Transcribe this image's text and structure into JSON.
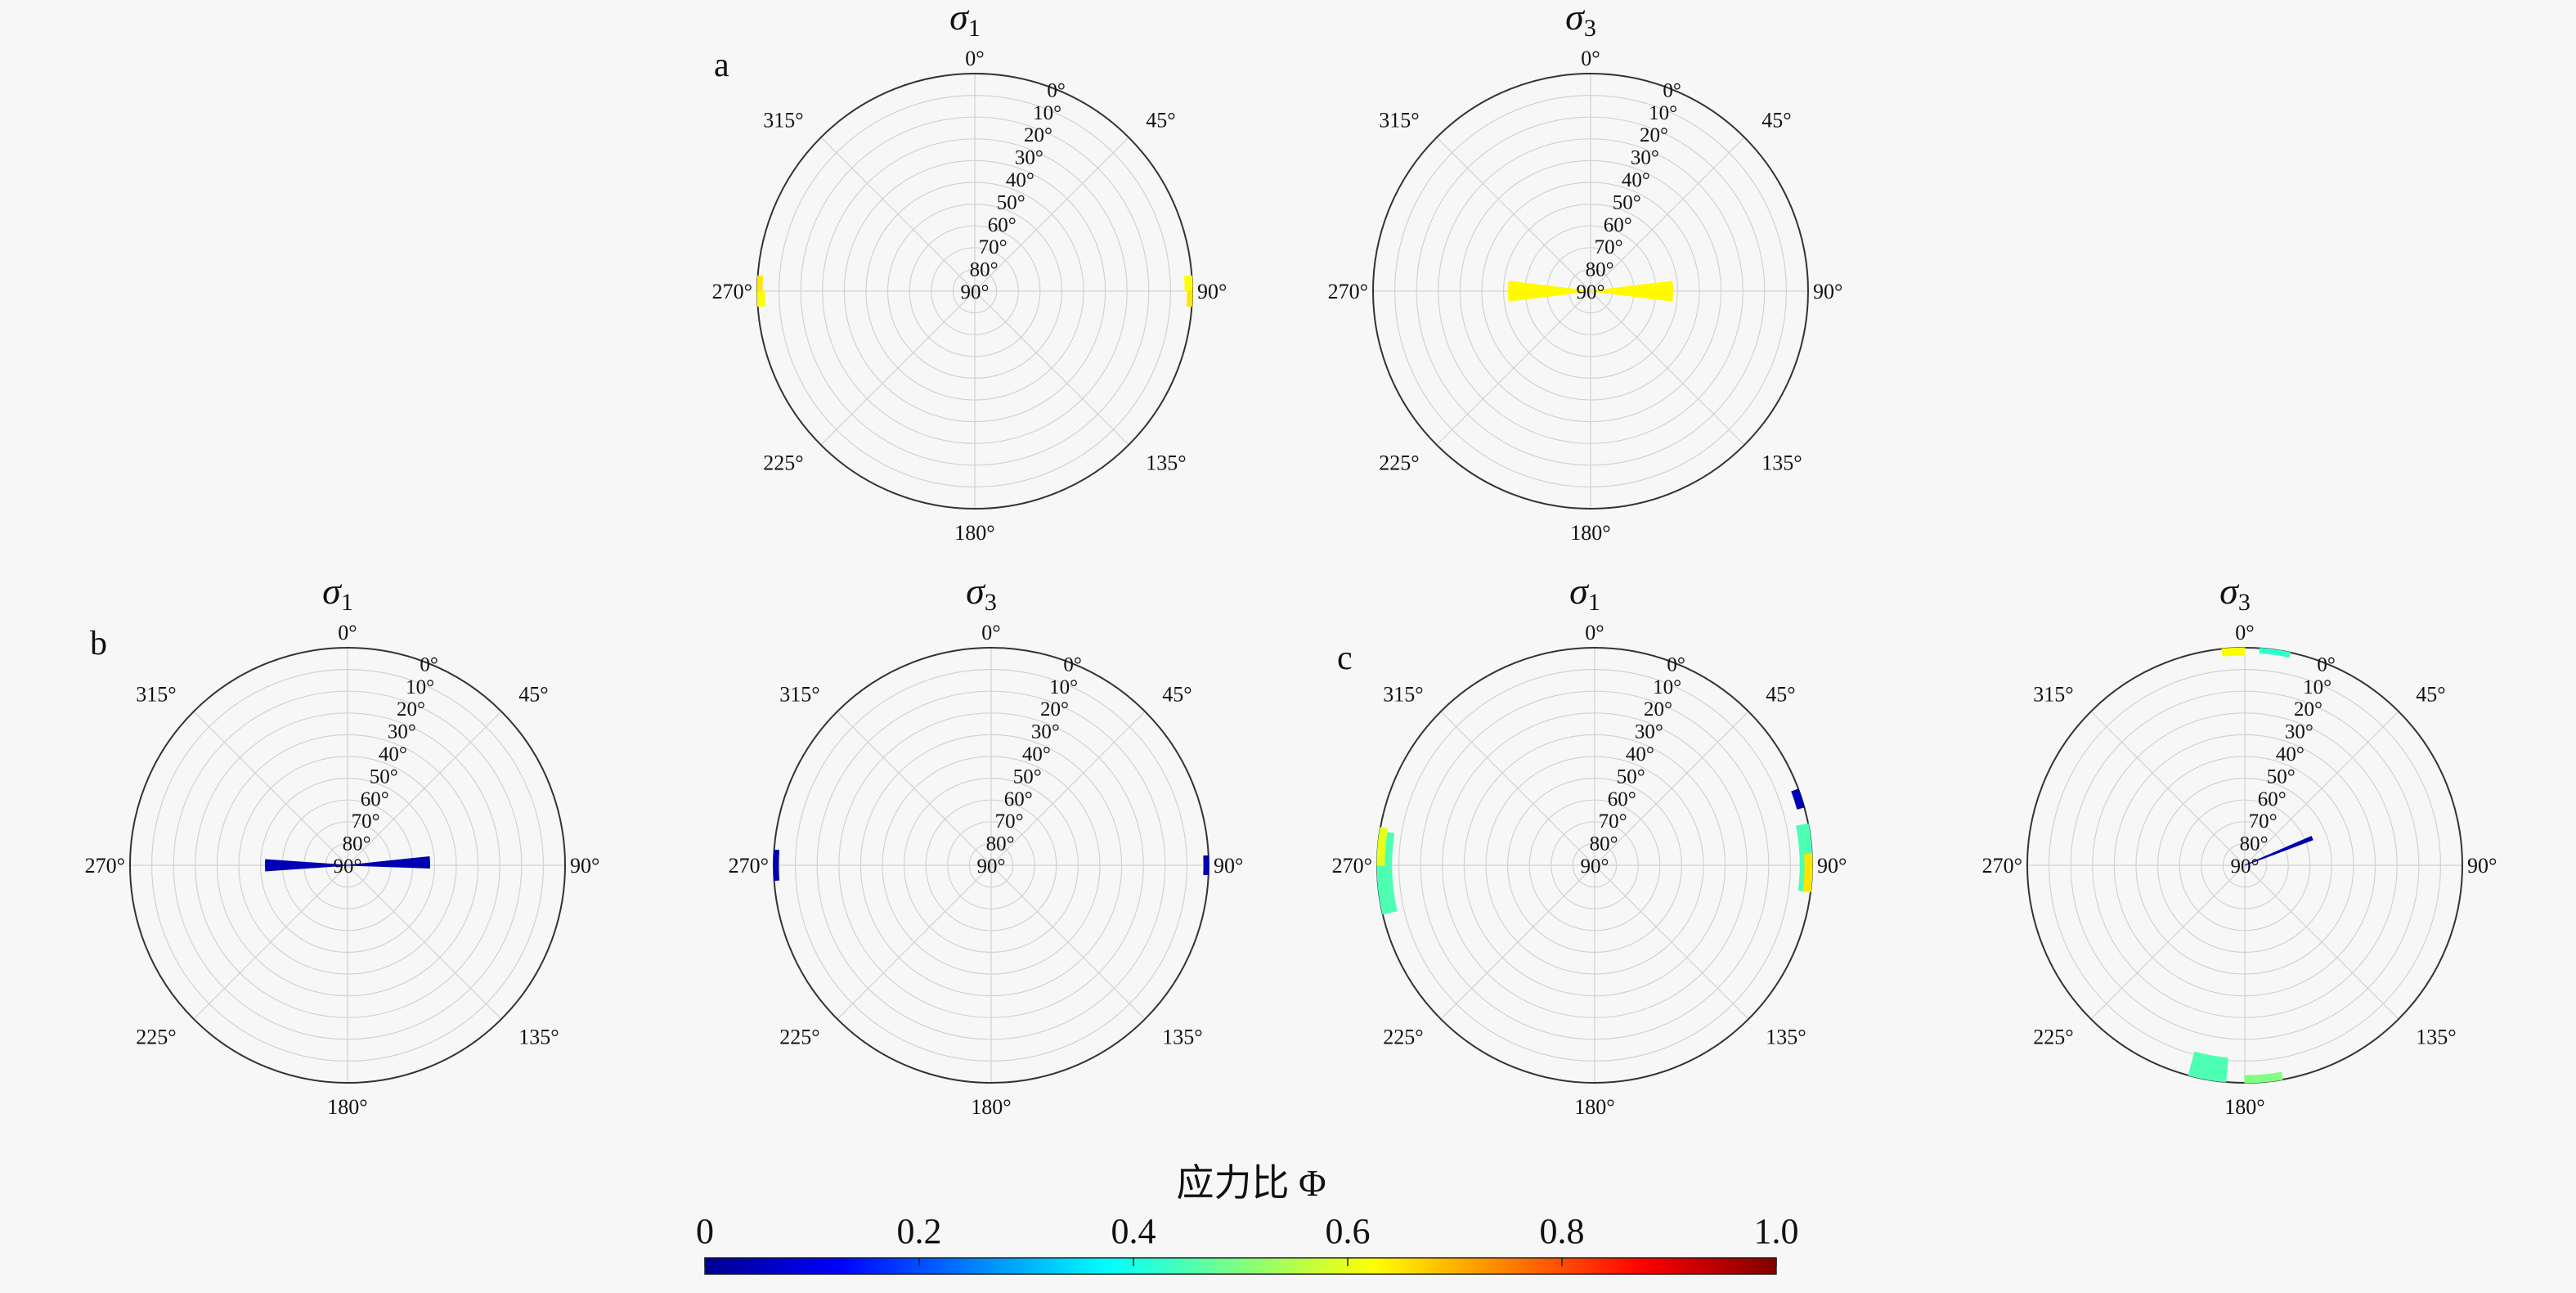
{
  "chart_data": {
    "type": "polar-rose",
    "colorbar": {
      "title": "应力比 Φ",
      "range": [
        0,
        1.0
      ],
      "ticks": [
        "0",
        "0.2",
        "0.4",
        "0.6",
        "0.8",
        "1.0"
      ],
      "colormap": "jet"
    },
    "azimuth_labels": [
      {
        "deg": 0,
        "label": "0°"
      },
      {
        "deg": 45,
        "label": "45°"
      },
      {
        "deg": 90,
        "label": "90°"
      },
      {
        "deg": 135,
        "label": "135°"
      },
      {
        "deg": 180,
        "label": "180°"
      },
      {
        "deg": 225,
        "label": "225°"
      },
      {
        "deg": 270,
        "label": "270°"
      },
      {
        "deg": 315,
        "label": "315°"
      }
    ],
    "plunge_labels": [
      "0°",
      "10°",
      "20°",
      "30°",
      "40°",
      "50°",
      "60°",
      "70°",
      "80°",
      "90°"
    ],
    "panels": [
      {
        "group": "a",
        "axis": "σ",
        "axis_sub": "1",
        "sectors": [
          {
            "az": 88,
            "width": 4,
            "plunge": [
              0,
              3
            ],
            "phi": 0.62
          },
          {
            "az": 92,
            "width": 4,
            "plunge": [
              0,
              2
            ],
            "phi": 0.65
          },
          {
            "az": 268,
            "width": 4,
            "plunge": [
              0,
              3
            ],
            "phi": 0.62
          },
          {
            "az": 272,
            "width": 4,
            "plunge": [
              0,
              2
            ],
            "phi": 0.65
          }
        ]
      },
      {
        "group": "a",
        "axis": "σ",
        "axis_sub": "3",
        "sectors": [
          {
            "az": 90,
            "width": 14,
            "plunge": [
              56,
              90
            ],
            "phi": 0.63
          },
          {
            "az": 270,
            "width": 14,
            "plunge": [
              56,
              90
            ],
            "phi": 0.63
          }
        ]
      },
      {
        "group": "b",
        "axis": "σ",
        "axis_sub": "1",
        "sectors": [
          {
            "az": 88,
            "width": 8,
            "plunge": [
              56,
              90
            ],
            "phi": 0.04
          },
          {
            "az": 270,
            "width": 8,
            "plunge": [
              56,
              90
            ],
            "phi": 0.04
          }
        ]
      },
      {
        "group": "b",
        "axis": "σ",
        "axis_sub": "3",
        "sectors": [
          {
            "az": 90,
            "width": 5,
            "plunge": [
              0,
              2
            ],
            "phi": 0.04
          },
          {
            "az": 270,
            "width": 8,
            "plunge": [
              0,
              2
            ],
            "phi": 0.04
          }
        ]
      },
      {
        "group": "c",
        "axis": "σ",
        "axis_sub": "1",
        "sectors": [
          {
            "az": 88,
            "width": 18,
            "plunge": [
              0,
              5
            ],
            "phi": 0.45
          },
          {
            "az": 92,
            "width": 10,
            "plunge": [
              0,
              3
            ],
            "phi": 0.65
          },
          {
            "az": 72,
            "width": 5,
            "plunge": [
              0,
              3
            ],
            "phi": 0.04
          },
          {
            "az": 268,
            "width": 22,
            "plunge": [
              0,
              6
            ],
            "phi": 0.45
          },
          {
            "az": 275,
            "width": 10,
            "plunge": [
              0,
              3
            ],
            "phi": 0.6
          }
        ]
      },
      {
        "group": "c",
        "axis": "σ",
        "axis_sub": "3",
        "sectors": [
          {
            "az": 357,
            "width": 6,
            "plunge": [
              0,
              3
            ],
            "phi": 0.62
          },
          {
            "az": 8,
            "width": 8,
            "plunge": [
              0,
              2
            ],
            "phi": 0.42
          },
          {
            "az": 175,
            "width": 10,
            "plunge": [
              0,
              3
            ],
            "phi": 0.5
          },
          {
            "az": 190,
            "width": 10,
            "plunge": [
              0,
              10
            ],
            "phi": 0.45
          },
          {
            "az": 68,
            "width": 3,
            "plunge": [
              60,
              90
            ],
            "phi": 0.04
          }
        ]
      }
    ],
    "panel_letters": [
      "a",
      "b",
      "c"
    ]
  }
}
